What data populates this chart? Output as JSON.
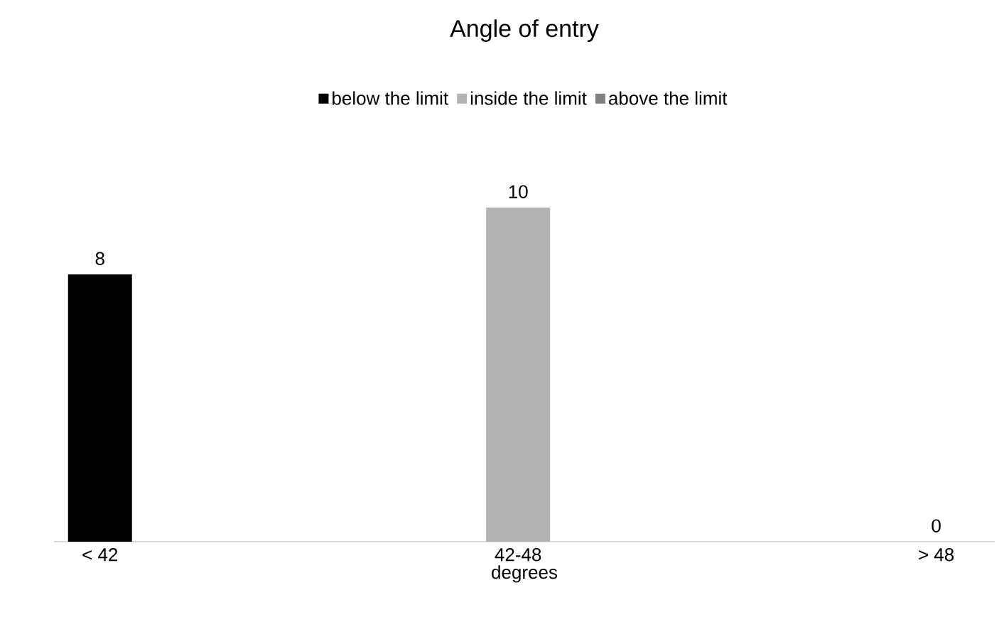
{
  "chart_data": {
    "type": "bar",
    "title": "Angle of entry",
    "xlabel": "degrees",
    "categories": [
      "< 42",
      "42-48",
      "> 48"
    ],
    "series": [
      {
        "name": "below the limit",
        "color": "#000000",
        "values": [
          8,
          null,
          null
        ]
      },
      {
        "name": "inside the limit",
        "color": "#b3b3b3",
        "values": [
          null,
          10,
          null
        ]
      },
      {
        "name": "above the limit",
        "color": "#808080",
        "values": [
          null,
          null,
          0
        ]
      }
    ],
    "data_labels": true,
    "legend": "top"
  }
}
